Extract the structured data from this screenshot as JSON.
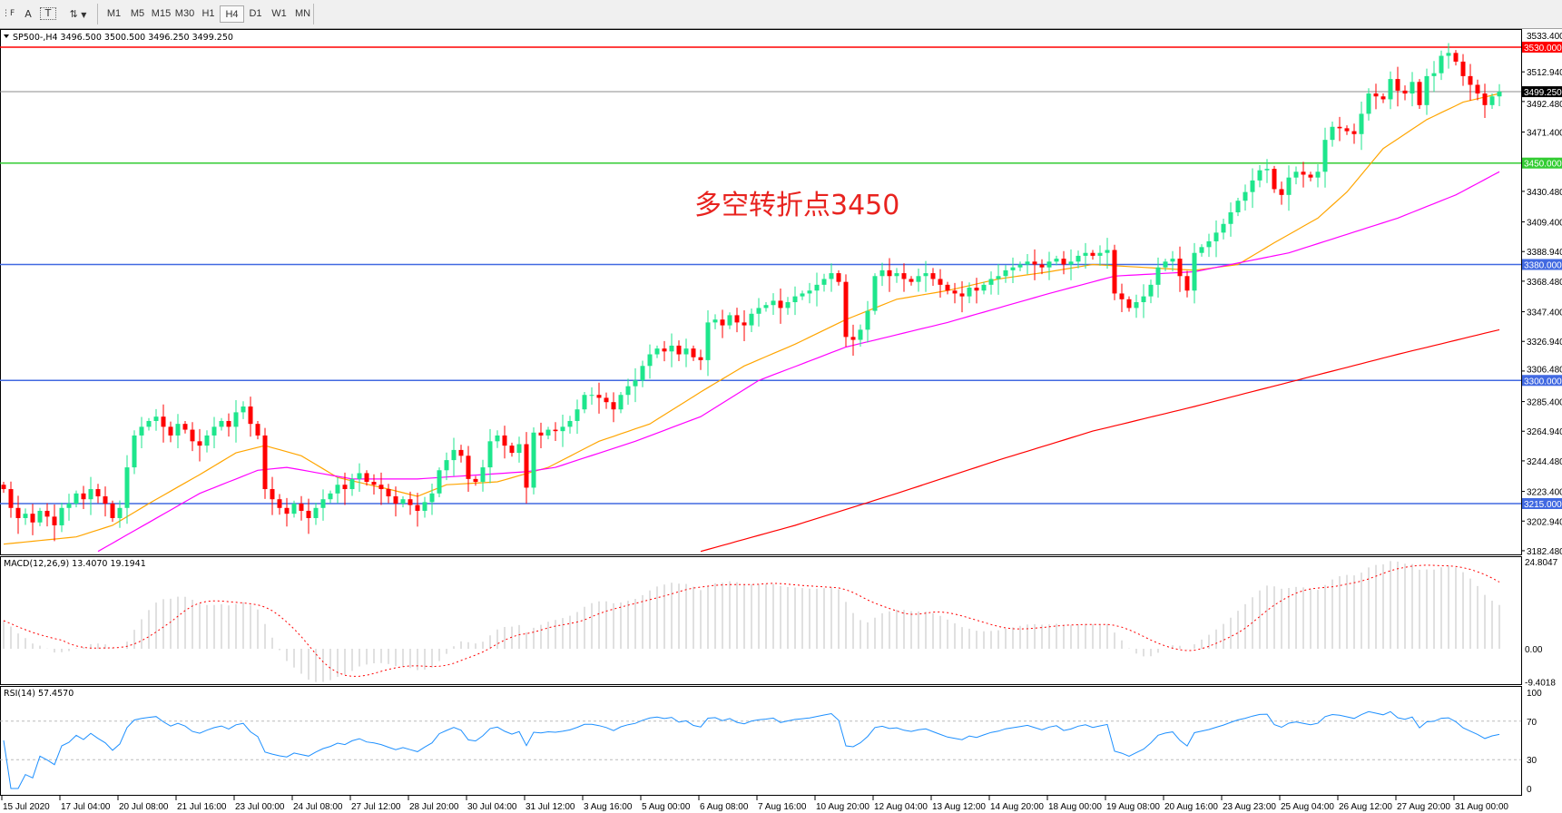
{
  "toolbar": {
    "tools": [
      {
        "icon": "grid-f-icon"
      },
      {
        "icon": "text-a-icon",
        "label": "A"
      },
      {
        "icon": "text-label-icon",
        "label": "T"
      },
      {
        "icon": "arrows-icon",
        "label": "⇅"
      }
    ],
    "timeframes": [
      "M1",
      "M5",
      "M15",
      "M30",
      "H1",
      "H4",
      "D1",
      "W1",
      "MN"
    ],
    "selected_timeframe": "H4"
  },
  "chart": {
    "symbol_info": "SP500-,H4  3496.500 3500.500 3496.250 3499.250",
    "annotation": "多空转折点3450",
    "annotation_color": "#e8231f",
    "macd_label": "MACD(12,26,9) 13.4070 19.1941",
    "rsi_label": "RSI(14) 57.4570",
    "colors": {
      "bull": "#1ee68c",
      "bear": "#ff0000",
      "ma_fast": "#ffa500",
      "ma_mid": "#ff00ff",
      "ma_slow": "#ff0000",
      "macd_hist": "#c0c0c0",
      "macd_signal": "#ff0000",
      "rsi": "#1e90ff"
    }
  },
  "chart_data": {
    "type": "candlestick",
    "timeframe": "H4",
    "price_ticks": [
      "3533.400",
      "3512.940",
      "3492.480",
      "3471.400",
      "3430.480",
      "3409.400",
      "3388.940",
      "3368.480",
      "3347.400",
      "3326.940",
      "3306.480",
      "3285.400",
      "3264.940",
      "3244.480",
      "3223.400",
      "3202.940",
      "3182.480"
    ],
    "ylim": [
      3180,
      3535
    ],
    "horizontal_lines": [
      {
        "value": 3530,
        "label": "3530.000",
        "color": "#ff0000"
      },
      {
        "value": 3450,
        "label": "3450.000",
        "color": "#33cc33"
      },
      {
        "value": 3380,
        "label": "3380.000",
        "color": "#4169e1"
      },
      {
        "value": 3300,
        "label": "3300.000",
        "color": "#4169e1"
      },
      {
        "value": 3215,
        "label": "3215.000",
        "color": "#4169e1"
      }
    ],
    "current_price": {
      "value": 3499.25,
      "label": "3499.250"
    },
    "time_labels": [
      "15 Jul 2020",
      "17 Jul 04:00",
      "20 Jul 08:00",
      "21 Jul 16:00",
      "23 Jul 00:00",
      "24 Jul 08:00",
      "27 Jul 12:00",
      "28 Jul 20:00",
      "30 Jul 04:00",
      "31 Jul 12:00",
      "3 Aug 16:00",
      "5 Aug 00:00",
      "6 Aug 08:00",
      "7 Aug 16:00",
      "10 Aug 20:00",
      "12 Aug 04:00",
      "13 Aug 12:00",
      "14 Aug 20:00",
      "18 Aug 00:00",
      "19 Aug 08:00",
      "20 Aug 16:00",
      "23 Aug 23:00",
      "25 Aug 04:00",
      "26 Aug 12:00",
      "27 Aug 20:00",
      "31 Aug 00:00"
    ],
    "closes": [
      3225,
      3212,
      3205,
      3208,
      3202,
      3210,
      3206,
      3200,
      3212,
      3215,
      3222,
      3218,
      3225,
      3220,
      3215,
      3205,
      3212,
      3240,
      3262,
      3268,
      3272,
      3275,
      3268,
      3262,
      3270,
      3266,
      3258,
      3255,
      3262,
      3268,
      3272,
      3268,
      3278,
      3282,
      3270,
      3262,
      3225,
      3218,
      3212,
      3208,
      3215,
      3210,
      3205,
      3212,
      3218,
      3222,
      3228,
      3225,
      3232,
      3236,
      3230,
      3228,
      3225,
      3220,
      3215,
      3218,
      3214,
      3210,
      3216,
      3222,
      3238,
      3245,
      3252,
      3248,
      3232,
      3230,
      3240,
      3258,
      3262,
      3255,
      3250,
      3256,
      3226,
      3264,
      3262,
      3266,
      3265,
      3268,
      3272,
      3280,
      3290,
      3290,
      3288,
      3285,
      3280,
      3290,
      3296,
      3300,
      3310,
      3318,
      3322,
      3320,
      3324,
      3318,
      3322,
      3316,
      3314,
      3340,
      3342,
      3338,
      3345,
      3340,
      3338,
      3346,
      3350,
      3352,
      3355,
      3350,
      3354,
      3358,
      3360,
      3362,
      3366,
      3370,
      3374,
      3368,
      3330,
      3328,
      3335,
      3348,
      3372,
      3376,
      3372,
      3374,
      3370,
      3368,
      3372,
      3374,
      3370,
      3366,
      3362,
      3360,
      3358,
      3364,
      3362,
      3366,
      3370,
      3372,
      3376,
      3378,
      3380,
      3382,
      3380,
      3378,
      3382,
      3384,
      3380,
      3382,
      3386,
      3388,
      3386,
      3388,
      3390,
      3360,
      3356,
      3350,
      3354,
      3358,
      3366,
      3378,
      3382,
      3384,
      3372,
      3362,
      3388,
      3392,
      3396,
      3402,
      3408,
      3416,
      3424,
      3430,
      3438,
      3445,
      3446,
      3432,
      3428,
      3440,
      3444,
      3442,
      3440,
      3444,
      3466,
      3475,
      3474,
      3472,
      3470,
      3484,
      3498,
      3496,
      3494,
      3508,
      3500,
      3498,
      3506,
      3490,
      3510,
      3512,
      3524,
      3526,
      3520,
      3510,
      3504,
      3498,
      3490,
      3496,
      3499.25
    ],
    "ma_fast": [
      [
        0,
        3187
      ],
      [
        10,
        3192
      ],
      [
        15,
        3200
      ],
      [
        20,
        3215
      ],
      [
        27,
        3235
      ],
      [
        32,
        3250
      ],
      [
        36,
        3255
      ],
      [
        41,
        3248
      ],
      [
        46,
        3233
      ],
      [
        53,
        3225
      ],
      [
        57,
        3220
      ],
      [
        61,
        3228
      ],
      [
        68,
        3230
      ],
      [
        75,
        3240
      ],
      [
        82,
        3258
      ],
      [
        89,
        3270
      ],
      [
        96,
        3292
      ],
      [
        102,
        3310
      ],
      [
        109,
        3325
      ],
      [
        116,
        3342
      ],
      [
        123,
        3356
      ],
      [
        130,
        3362
      ],
      [
        137,
        3370
      ],
      [
        144,
        3375
      ],
      [
        150,
        3380
      ],
      [
        157,
        3378
      ],
      [
        164,
        3376
      ],
      [
        170,
        3380
      ],
      [
        175,
        3395
      ],
      [
        181,
        3412
      ],
      [
        185,
        3430
      ],
      [
        190,
        3460
      ],
      [
        196,
        3480
      ],
      [
        201,
        3492
      ],
      [
        206,
        3498
      ]
    ],
    "ma_mid": [
      [
        13,
        3182
      ],
      [
        27,
        3222
      ],
      [
        35,
        3238
      ],
      [
        39,
        3240
      ],
      [
        48,
        3232
      ],
      [
        57,
        3232
      ],
      [
        72,
        3237
      ],
      [
        76,
        3240
      ],
      [
        87,
        3258
      ],
      [
        96,
        3275
      ],
      [
        104,
        3300
      ],
      [
        116,
        3323
      ],
      [
        130,
        3340
      ],
      [
        144,
        3360
      ],
      [
        153,
        3372
      ],
      [
        164,
        3375
      ],
      [
        171,
        3382
      ],
      [
        177,
        3388
      ],
      [
        192,
        3412
      ],
      [
        200,
        3428
      ],
      [
        206,
        3444
      ]
    ],
    "ma_slow": [
      [
        96,
        3182
      ],
      [
        109,
        3200
      ],
      [
        123,
        3222
      ],
      [
        137,
        3245
      ],
      [
        150,
        3265
      ],
      [
        164,
        3282
      ],
      [
        178,
        3300
      ],
      [
        192,
        3318
      ],
      [
        206,
        3335
      ]
    ],
    "macd_ticks": [
      "24.8047",
      "0.00",
      "-9.4018"
    ],
    "rsi_ticks": [
      "100",
      "70",
      "30",
      "0"
    ]
  }
}
